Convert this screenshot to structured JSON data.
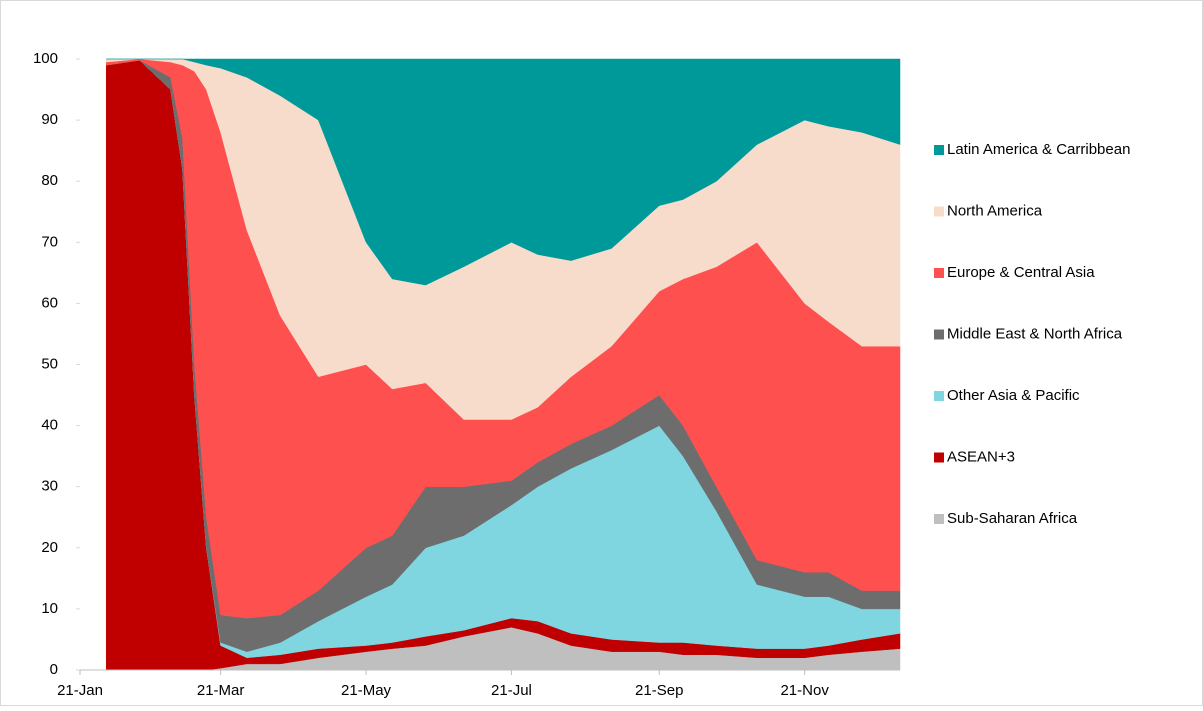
{
  "chart_data": {
    "type": "stacked_area",
    "x": [
      "1-Feb",
      "15-Feb",
      "28-Feb",
      "5-Mar",
      "10-Mar",
      "15-Mar",
      "21-Mar",
      "1-Apr",
      "15-Apr",
      "1-May",
      "21-May",
      "1-Jun",
      "15-Jun",
      "1-Jul",
      "21-Jul",
      "1-Aug",
      "15-Aug",
      "1-Sep",
      "21-Sep",
      "1-Oct",
      "15-Oct",
      "1-Nov",
      "21-Nov",
      "1-Dec",
      "15-Dec",
      "31-Dec"
    ],
    "xlim": [
      "21-Jan",
      "31-Dec"
    ],
    "xticks": [
      "21-Jan",
      "21-Mar",
      "21-May",
      "21-Jul",
      "21-Sep",
      "21-Nov"
    ],
    "ylim": [
      0,
      100
    ],
    "yticks": [
      0,
      10,
      20,
      30,
      40,
      50,
      60,
      70,
      80,
      90,
      100
    ],
    "legend": "right",
    "series": [
      {
        "name": "Sub-Saharan Africa",
        "color": "#bfbfbf",
        "values": [
          0,
          0,
          0,
          0,
          0,
          0,
          0.3,
          1,
          1,
          2,
          3,
          3.5,
          4,
          5.5,
          7,
          6,
          4,
          3,
          3,
          2.5,
          2.5,
          2,
          2,
          2.5,
          3,
          3.5
        ]
      },
      {
        "name": "ASEAN+3",
        "color": "#c00000",
        "values": [
          99,
          99.8,
          95,
          82,
          45,
          20,
          3.7,
          1,
          1.5,
          1.5,
          1,
          1,
          1.5,
          1,
          1.5,
          2,
          2,
          2,
          1.5,
          2,
          1.5,
          1.5,
          1.5,
          1.5,
          2,
          2.5
        ]
      },
      {
        "name": "Other Asia & Pacific",
        "color": "#7fd6e0",
        "values": [
          0,
          0,
          0,
          0,
          0,
          0,
          0.5,
          1,
          2,
          4.5,
          8,
          9.5,
          14.5,
          15.5,
          18.5,
          22,
          27,
          31,
          35.5,
          30.5,
          22,
          10.5,
          8.5,
          8,
          5,
          4
        ]
      },
      {
        "name": "Middle East & North Africa",
        "color": "#6d6d6d",
        "values": [
          0,
          0,
          2,
          5,
          5,
          5,
          4.5,
          5.5,
          4.5,
          5,
          8,
          8,
          10,
          8,
          4,
          4,
          4,
          4,
          5,
          5,
          4,
          4,
          4,
          4,
          3,
          3
        ]
      },
      {
        "name": "Europe & Central Asia",
        "color": "#ff5050",
        "values": [
          0.5,
          0.2,
          2.5,
          12,
          48,
          70,
          79,
          63.5,
          49,
          35,
          30,
          24,
          17,
          11,
          10,
          9,
          11,
          13,
          17,
          24,
          36,
          52,
          44,
          41,
          40,
          40
        ]
      },
      {
        "name": "North America",
        "color": "#f8dccb",
        "values": [
          0.5,
          0,
          0.5,
          1,
          1.5,
          4,
          10.5,
          25,
          36,
          42,
          20,
          18,
          16,
          25,
          29,
          25,
          19,
          16,
          14,
          13,
          14,
          16,
          30,
          32,
          35,
          33
        ]
      },
      {
        "name": "Latin America & Carribbean",
        "color": "#009999",
        "values": [
          0,
          0,
          0,
          0,
          0.5,
          1,
          1.5,
          3,
          6,
          10,
          30,
          36,
          37,
          34,
          30,
          32,
          33,
          31,
          24,
          23,
          20,
          14,
          10,
          11,
          12,
          14
        ]
      }
    ]
  }
}
